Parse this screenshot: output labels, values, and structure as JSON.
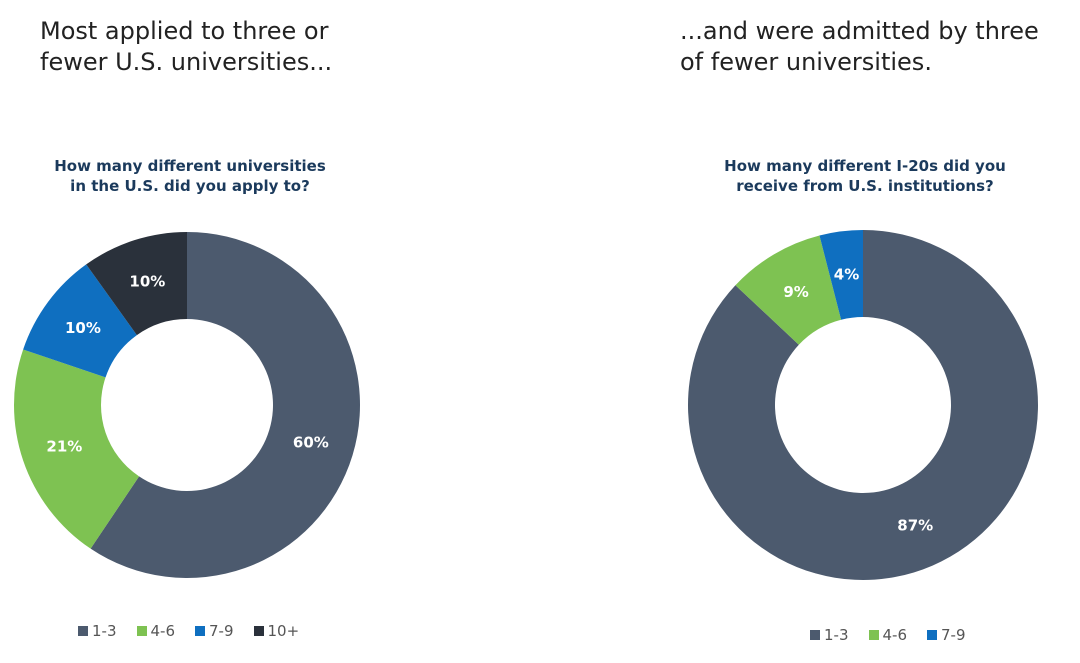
{
  "colors": {
    "c1_3": "#4c5a6e",
    "c4_6": "#7ec252",
    "c7_9": "#0f6fc0",
    "c10_plus": "#2a313b",
    "headline_text": "#222222",
    "question_text": "#1b3a5c"
  },
  "chart_data": [
    {
      "type": "pie",
      "title": "Most applied to three or\nfewer U.S. universities...",
      "subtitle": "How many different universities\nin the U.S. did you apply to?",
      "categories": [
        "1-3",
        "4-6",
        "7-9",
        "10+"
      ],
      "values": [
        60,
        21,
        10,
        10
      ],
      "labels": [
        "60%",
        "21%",
        "10%",
        "10%"
      ],
      "colors": [
        "#4c5a6e",
        "#7ec252",
        "#0f6fc0",
        "#2a313b"
      ],
      "donut": true,
      "start_angle": "12 o'clock",
      "direction": "clockwise",
      "legend_position": "bottom"
    },
    {
      "type": "pie",
      "title": "...and were admitted by three\nof fewer universities.",
      "subtitle": "How many different I-20s did you\nreceive from U.S. institutions?",
      "categories": [
        "1-3",
        "4-6",
        "7-9"
      ],
      "values": [
        87,
        9,
        4
      ],
      "labels": [
        "87%",
        "9%",
        "4%"
      ],
      "colors": [
        "#4c5a6e",
        "#7ec252",
        "#0f6fc0"
      ],
      "donut": true,
      "start_angle": "12 o'clock",
      "direction": "clockwise",
      "legend_position": "bottom"
    }
  ]
}
